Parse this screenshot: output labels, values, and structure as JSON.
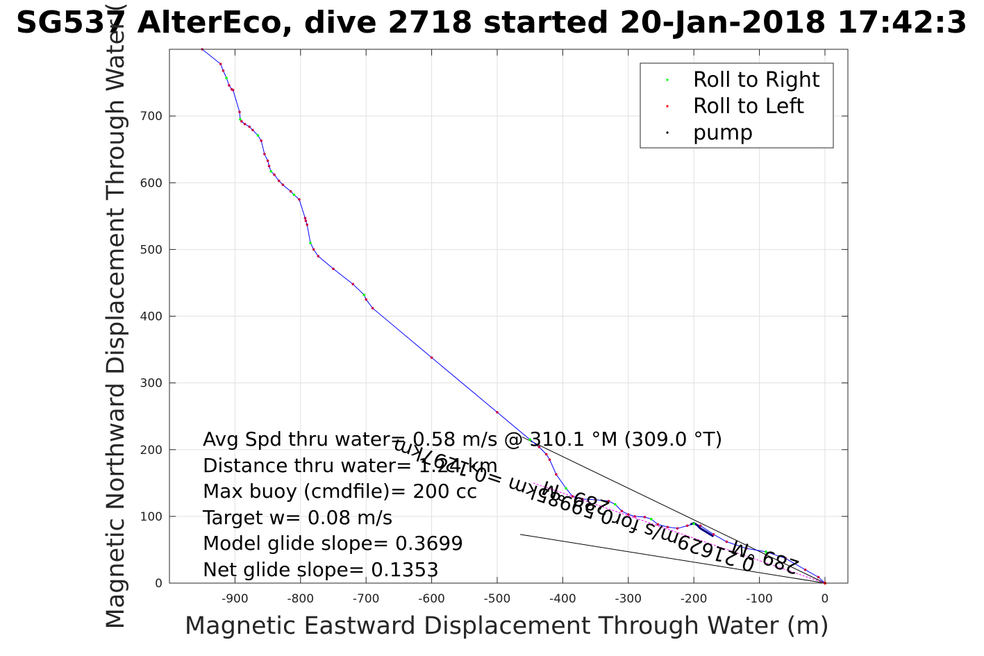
{
  "chart_data": {
    "type": "line",
    "title": "SG537 AlterEco, dive 2718 started 20-Jan-2018 17:42:3",
    "xlabel": "Magnetic Eastward Displacement Through Water (m)",
    "ylabel": "Magnetic Northward Displacement Through Water (",
    "xlim": [
      -1000,
      35
    ],
    "ylim": [
      0,
      800
    ],
    "xticks": [
      -900,
      -800,
      -700,
      -600,
      -500,
      -400,
      -300,
      -200,
      -100,
      0
    ],
    "yticks": [
      0,
      100,
      200,
      300,
      400,
      500,
      600,
      700
    ],
    "grid": true,
    "legend_position": "top-right",
    "legend": [
      {
        "label": "Roll to Right",
        "color": "#00ff00"
      },
      {
        "label": "Roll to Left",
        "color": "#ff0000"
      },
      {
        "label": "pump",
        "color": "#000000"
      }
    ],
    "track": {
      "name": "",
      "color": "#0000ff",
      "x": [
        -950,
        -922,
        -918,
        -913,
        -909,
        -905,
        -903,
        -893,
        -892,
        -890,
        -885,
        -878,
        -873,
        -865,
        -860,
        -855,
        -850,
        -848,
        -845,
        -840,
        -833,
        -827,
        -815,
        -810,
        -802,
        -793,
        -792,
        -790,
        -785,
        -780,
        -773,
        -750,
        -720,
        -703,
        -700,
        -690,
        -600,
        -500,
        -450,
        -436,
        -425,
        -420,
        -410,
        -395,
        -385,
        -370,
        -350,
        -330,
        -320,
        -310,
        -300,
        -290,
        -275,
        -265,
        -255,
        -240,
        -225,
        -210,
        -200,
        -190,
        -170,
        -150,
        -120,
        -90,
        -60,
        -30,
        -10,
        0
      ],
      "y": [
        800,
        778,
        768,
        757,
        746,
        740,
        739,
        706,
        695,
        692,
        688,
        684,
        679,
        671,
        663,
        643,
        633,
        625,
        617,
        612,
        603,
        597,
        587,
        582,
        575,
        547,
        543,
        537,
        510,
        500,
        490,
        471,
        448,
        432,
        425,
        412,
        338,
        256,
        215,
        204,
        193,
        185,
        163,
        142,
        130,
        126,
        125,
        123,
        118,
        108,
        103,
        100,
        99,
        96,
        88,
        84,
        82,
        86,
        89,
        86,
        73,
        62,
        52,
        47,
        37,
        20,
        9,
        0
      ]
    },
    "pump_segment": {
      "x": [
        -205,
        -200,
        -195,
        -190,
        -185,
        -180,
        -175,
        -170
      ],
      "y": [
        88,
        90,
        87,
        82,
        79,
        76,
        73,
        70
      ]
    },
    "model_glide_line": {
      "x": [
        -462,
        0
      ],
      "y": [
        219,
        0
      ]
    },
    "net_glide_line": {
      "x": [
        -465,
        0
      ],
      "y": [
        73,
        0
      ]
    },
    "current_line": {
      "x": [
        -445,
        0
      ],
      "y": [
        150,
        0
      ],
      "color": "#ff00ff"
    },
    "annotations": {
      "avg_spd": "Avg Spd thru water=  0.58 m/s @ 310.1 °M (309.0 °T)",
      "distance": "Distance thru water=  1.24 km",
      "max_buoy": "Max buoy (cmdfile)= 200 cc",
      "target_w": "Target w= 0.08 m/s",
      "model_slope": "Model glide slope= 0.3699",
      "net_slope": "Net glide slope= 0.1353",
      "current_1": "0.21629m/s for0.59985km =0.1297km",
      "current_2": "289 °M",
      "current_3": "289 °M"
    }
  }
}
